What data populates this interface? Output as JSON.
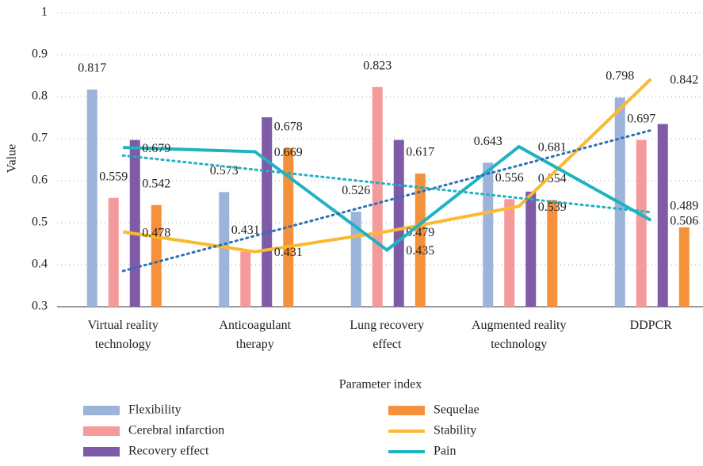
{
  "chart_data": {
    "type": "bar",
    "x_label": "Parameter index",
    "y_label": "Value",
    "categories": [
      "Virtual reality\ntechnology",
      "Anticoagulant\ntherapy",
      "Lung recovery\neffect",
      "Augmented reality\ntechnology",
      "DDPCR"
    ],
    "series": [
      {
        "name": "Flexibility",
        "type": "bar",
        "color": "#9db4da",
        "values": [
          0.817,
          0.573,
          0.526,
          0.643,
          0.798
        ],
        "show_labels": true
      },
      {
        "name": "Cerebral infarction",
        "type": "bar",
        "color": "#f49a9a",
        "values": [
          0.559,
          0.431,
          0.823,
          0.556,
          0.697
        ],
        "show_labels": true
      },
      {
        "name": "Recovery effect",
        "type": "bar",
        "color": "#7e5aa7",
        "values": [
          0.697,
          0.751,
          0.697,
          0.574,
          0.735
        ],
        "show_labels": false
      },
      {
        "name": "Sequelae",
        "type": "bar",
        "color": "#f5913b",
        "values": [
          0.542,
          0.678,
          0.617,
          0.554,
          0.489
        ],
        "show_labels": true
      },
      {
        "name": "Stability",
        "type": "line",
        "color": "#fbb931",
        "values": [
          0.478,
          0.431,
          0.479,
          0.539,
          0.842
        ],
        "show_labels": true
      },
      {
        "name": "Pain",
        "type": "line",
        "color": "#1fb2c0",
        "values": [
          0.679,
          0.669,
          0.435,
          0.681,
          0.506
        ],
        "show_labels": true
      }
    ],
    "trendlines": [
      {
        "color": "#2e6fb5",
        "values": [
          0.385,
          0.72
        ]
      },
      {
        "color": "#1fb2c0",
        "values": [
          0.66,
          0.525
        ]
      }
    ],
    "ylim": [
      0.3,
      1
    ],
    "yticks": [
      0.3,
      0.4,
      0.5,
      0.6,
      0.7,
      0.8,
      0.9,
      1
    ],
    "grid": true
  }
}
